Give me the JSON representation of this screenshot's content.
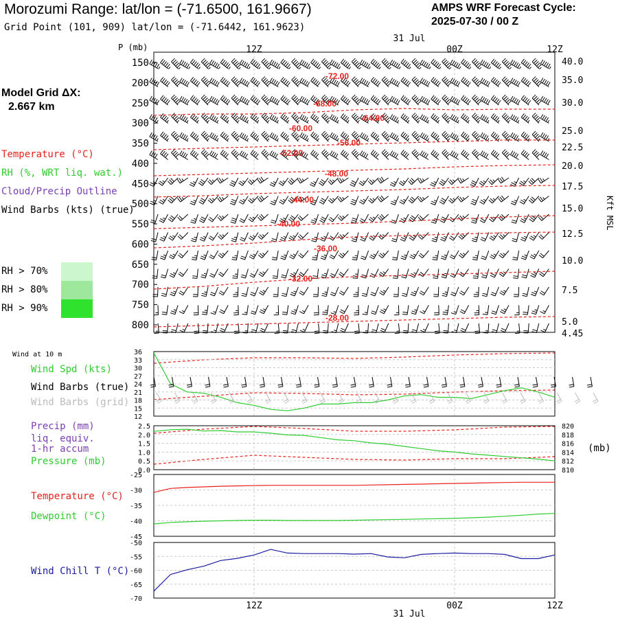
{
  "header": {
    "title": "Morozumi Range:  lat/lon = (-71.6500, 161.9667)",
    "grid_point": "Grid Point (101, 909) lat/lon = (-71.6442, 161.9623)",
    "cycle_line1": "AMPS WRF Forecast Cycle:",
    "cycle_line2": "2025-07-30 / 00  Z"
  },
  "sidebar": {
    "model_grid_line1": "Model Grid ΔX:",
    "model_grid_line2": "2.667 km",
    "legend": [
      {
        "label": "Temperature (°C)",
        "color": "#e8201c"
      },
      {
        "label": "RH (%, WRT liq. wat.)",
        "color": "#2ecc2e"
      },
      {
        "label": "Cloud/Precip Outline",
        "color": "#7a3fb0"
      },
      {
        "label": "Wind Barbs (kts) (true)",
        "color": "#000000"
      }
    ],
    "rh_thresholds": [
      {
        "label": "RH > 70%",
        "color": "#ccf7cc"
      },
      {
        "label": "RH > 80%",
        "color": "#9ee89e"
      },
      {
        "label": "RH > 90%",
        "color": "#2ee22e"
      }
    ]
  },
  "time_axis": {
    "top_date": "31 Jul",
    "bottom_date": "31 Jul",
    "ticks": [
      "12Z",
      "00Z",
      "12Z"
    ]
  },
  "chart_data": [
    {
      "type": "line",
      "panel": "cross-section",
      "ylabel": "P (mb)",
      "y2label": "Kft MSL",
      "pressure_ticks": [
        150,
        200,
        250,
        300,
        350,
        400,
        450,
        500,
        550,
        600,
        650,
        700,
        750,
        800
      ],
      "kft_ticks": [
        {
          "p": 145,
          "label": "40.0"
        },
        {
          "p": 197,
          "label": "35.0"
        },
        {
          "p": 243,
          "label": "30.0"
        },
        {
          "p": 295,
          "label": "25.0"
        },
        {
          "p": 325,
          "label": "22.5"
        },
        {
          "p": 357,
          "label": "20.0"
        },
        {
          "p": 396,
          "label": "17.5"
        },
        {
          "p": 438,
          "label": "15.0"
        },
        {
          "p": 483,
          "label": "12.5"
        },
        {
          "p": 533,
          "label": "10.0"
        },
        {
          "p": 587,
          "label": "7.5"
        },
        {
          "p": 644,
          "label": "5.0"
        },
        {
          "p": 660,
          "label": "4.45"
        }
      ],
      "temperature_contours": [
        {
          "label": "-72.00",
          "points": [
            [
              0,
              168
            ],
            [
              6,
              166
            ],
            [
              12,
              166
            ],
            [
              18,
              164
            ],
            [
              24,
              160
            ],
            [
              30,
              158
            ],
            [
              36,
              160
            ],
            [
              42,
              159
            ],
            [
              48,
              159
            ]
          ]
        },
        {
          "label": "-68.00",
          "points": [
            [
              0,
              218
            ],
            [
              6,
              216
            ],
            [
              12,
              214
            ],
            [
              18,
              212
            ],
            [
              24,
              210
            ],
            [
              30,
              208
            ],
            [
              36,
              206
            ],
            [
              42,
              204
            ],
            [
              48,
              204
            ]
          ]
        },
        {
          "label": "-64.00",
          "points": [
            [
              0,
              256
            ],
            [
              6,
              254
            ],
            [
              12,
              252
            ],
            [
              18,
              250
            ],
            [
              24,
              248
            ],
            [
              30,
              246
            ],
            [
              36,
              243
            ],
            [
              42,
              241
            ],
            [
              48,
              240
            ]
          ]
        },
        {
          "label": "-60.00",
          "points": [
            [
              0,
              287
            ],
            [
              6,
              285
            ],
            [
              12,
              282
            ],
            [
              18,
              280
            ],
            [
              24,
              278
            ],
            [
              30,
              276
            ],
            [
              36,
              273
            ],
            [
              42,
              271
            ],
            [
              48,
              270
            ]
          ]
        },
        {
          "label": "-56.00",
          "points": [
            [
              0,
              333
            ],
            [
              6,
              331
            ],
            [
              12,
              329
            ],
            [
              18,
              327
            ],
            [
              24,
              325
            ],
            [
              30,
              322
            ],
            [
              36,
              319
            ],
            [
              42,
              316
            ],
            [
              48,
              314
            ]
          ]
        },
        {
          "label": "-52.00",
          "points": [
            [
              0,
              361
            ],
            [
              6,
              358
            ],
            [
              12,
              354
            ],
            [
              18,
              349
            ],
            [
              24,
              345
            ],
            [
              30,
              343
            ],
            [
              36,
              341
            ],
            [
              42,
              339
            ],
            [
              48,
              338
            ]
          ]
        },
        {
          "label": "-48.00",
          "points": [
            [
              0,
              421
            ],
            [
              6,
              417
            ],
            [
              12,
              411
            ],
            [
              18,
              406
            ],
            [
              24,
              403
            ],
            [
              30,
              401
            ],
            [
              36,
              399
            ],
            [
              42,
              397
            ],
            [
              48,
              395
            ]
          ]
        },
        {
          "label": "-44.00",
          "points": [
            [
              0,
              476
            ],
            [
              6,
              474
            ],
            [
              12,
              472
            ],
            [
              18,
              470
            ],
            [
              24,
              468
            ],
            [
              30,
              466
            ],
            [
              36,
              464
            ],
            [
              42,
              462
            ],
            [
              48,
              461
            ]
          ]
        },
        {
          "label": "-40.00",
          "points": [
            [
              0,
              529
            ],
            [
              6,
              524
            ],
            [
              12,
              521
            ],
            [
              18,
              521
            ],
            [
              24,
              522
            ],
            [
              30,
              520
            ],
            [
              36,
              517
            ],
            [
              42,
              515
            ],
            [
              48,
              514
            ]
          ]
        },
        {
          "label": "-36.00",
          "points": [
            [
              0,
              582
            ],
            [
              6,
              577
            ],
            [
              12,
              572
            ],
            [
              18,
              573
            ],
            [
              24,
              575
            ],
            [
              30,
              574
            ],
            [
              36,
              571
            ],
            [
              42,
              569
            ],
            [
              48,
              568
            ]
          ]
        },
        {
          "label": "-32.00",
          "points": [
            [
              0,
              631
            ],
            [
              6,
              625
            ],
            [
              12,
              621
            ],
            [
              18,
              624
            ],
            [
              24,
              628
            ],
            [
              30,
              628
            ],
            [
              36,
              626
            ],
            [
              42,
              622
            ],
            [
              48,
              621
            ]
          ]
        },
        {
          "label": "-28.00",
          "points": [
            [
              0,
              676
            ],
            [
              6,
              669
            ],
            [
              12,
              663
            ],
            [
              18,
              666
            ],
            [
              24,
              669
            ],
            [
              30,
              670
            ],
            [
              36,
              668
            ],
            [
              42,
              668
            ],
            [
              48,
              665
            ]
          ]
        }
      ]
    },
    {
      "type": "line",
      "panel": "wind-10m",
      "title": "Wind at 10 m",
      "labels": [
        "Wind Spd (kts)",
        "Wind Barbs (true)",
        "Wind Barbs (grid)"
      ],
      "label_colors": [
        "#2ecc2e",
        "#000000",
        "#bbbbbb"
      ],
      "yticks": [
        12,
        15,
        18,
        21,
        24,
        27,
        30,
        33,
        36
      ],
      "ylim": [
        12,
        36
      ],
      "series": [
        {
          "color": "#2ecc2e",
          "x": [
            0,
            2,
            4,
            6,
            8,
            10,
            12,
            14,
            16,
            18,
            20,
            22,
            24,
            26,
            28,
            30,
            32,
            34,
            36,
            38,
            40,
            42,
            44,
            46,
            48
          ],
          "values": [
            35.5,
            24,
            21,
            20.5,
            19,
            17,
            16,
            14.5,
            14,
            15,
            16.5,
            16.5,
            17,
            17,
            18,
            19.5,
            20,
            19,
            19,
            18.5,
            20,
            21.5,
            22.5,
            21,
            19
          ]
        }
      ]
    },
    {
      "type": "line",
      "panel": "precip-pressure",
      "labels": [
        "Precip (mm)",
        "liq. equiv.",
        "1-hr accum",
        "Pressure (mb)"
      ],
      "label_colors": [
        "#7a3fb0",
        "#7a3fb0",
        "#7a3fb0",
        "#2ecc2e"
      ],
      "yticks_left": [
        "0.0",
        "0.5",
        "1.0",
        "1.5",
        "2.0",
        "2.5"
      ],
      "yticks_right": [
        "810",
        "812",
        "814",
        "816",
        "818",
        "820"
      ],
      "y2label": "(mb)",
      "ylim": [
        810,
        820
      ],
      "series": [
        {
          "name": "Pressure (mb)",
          "color": "#2ecc2e",
          "x": [
            0,
            2,
            4,
            6,
            8,
            10,
            12,
            14,
            16,
            18,
            20,
            22,
            24,
            26,
            28,
            30,
            32,
            34,
            36,
            38,
            40,
            42,
            44,
            46,
            48
          ],
          "values": [
            818.7,
            819.1,
            819.2,
            818.8,
            818.9,
            818.6,
            818.6,
            818.3,
            817.9,
            817.8,
            817.3,
            816.8,
            816.6,
            816.1,
            815.8,
            815.3,
            814.8,
            814.3,
            814.0,
            813.6,
            813.3,
            813.0,
            812.7,
            812.4,
            812.0
          ]
        }
      ]
    },
    {
      "type": "line",
      "panel": "temperature",
      "labels": [
        "Temperature (°C)",
        "Dewpoint (°C)"
      ],
      "label_colors": [
        "#e8201c",
        "#2ecc2e"
      ],
      "yticks": [
        -45,
        -40,
        -35,
        -30,
        -25
      ],
      "ylim": [
        -45,
        -25
      ],
      "series": [
        {
          "name": "Temperature (°C)",
          "color": "#e8201c",
          "x": [
            0,
            2,
            4,
            6,
            8,
            10,
            12,
            14,
            16,
            18,
            20,
            22,
            24,
            26,
            28,
            30,
            32,
            34,
            36,
            38,
            40,
            42,
            44,
            46,
            48
          ],
          "values": [
            -30.8,
            -29.5,
            -29.2,
            -29.0,
            -28.8,
            -28.7,
            -28.6,
            -28.5,
            -28.5,
            -28.5,
            -28.5,
            -28.5,
            -28.5,
            -28.4,
            -28.3,
            -28.2,
            -28.1,
            -28.0,
            -27.9,
            -27.8,
            -27.7,
            -27.6,
            -27.5,
            -27.5,
            -27.5
          ]
        },
        {
          "name": "Dewpoint (°C)",
          "color": "#2ecc2e",
          "x": [
            0,
            2,
            4,
            6,
            8,
            10,
            12,
            14,
            16,
            18,
            20,
            22,
            24,
            26,
            28,
            30,
            32,
            34,
            36,
            38,
            40,
            42,
            44,
            46,
            48
          ],
          "values": [
            -41.0,
            -40.5,
            -40.3,
            -40.1,
            -40.0,
            -39.9,
            -39.8,
            -39.8,
            -39.9,
            -39.9,
            -39.9,
            -39.9,
            -39.8,
            -39.7,
            -39.6,
            -39.5,
            -39.4,
            -39.3,
            -39.2,
            -39.0,
            -38.8,
            -38.5,
            -38.2,
            -37.8,
            -37.6
          ]
        }
      ]
    },
    {
      "type": "line",
      "panel": "wind-chill",
      "labels": [
        "Wind Chill T (°C)"
      ],
      "label_colors": [
        "#1a1aa0"
      ],
      "yticks": [
        -70,
        -65,
        -60,
        -55,
        -50
      ],
      "ylim": [
        -70,
        -50
      ],
      "series": [
        {
          "name": "Wind Chill T (°C)",
          "color": "#1a1aa0",
          "x": [
            0,
            2,
            4,
            6,
            8,
            10,
            12,
            14,
            16,
            18,
            20,
            22,
            24,
            26,
            28,
            30,
            32,
            34,
            36,
            38,
            40,
            42,
            44,
            46,
            48
          ],
          "values": [
            -67.5,
            -61.5,
            -59.8,
            -58.5,
            -56.5,
            -55.7,
            -54.5,
            -52.5,
            -53.8,
            -54.0,
            -54.0,
            -54.0,
            -54.2,
            -54.0,
            -55.2,
            -55.5,
            -54.3,
            -54.0,
            -53.8,
            -54.0,
            -54.0,
            -54.3,
            -55.8,
            -55.8,
            -54.5
          ]
        }
      ]
    }
  ]
}
